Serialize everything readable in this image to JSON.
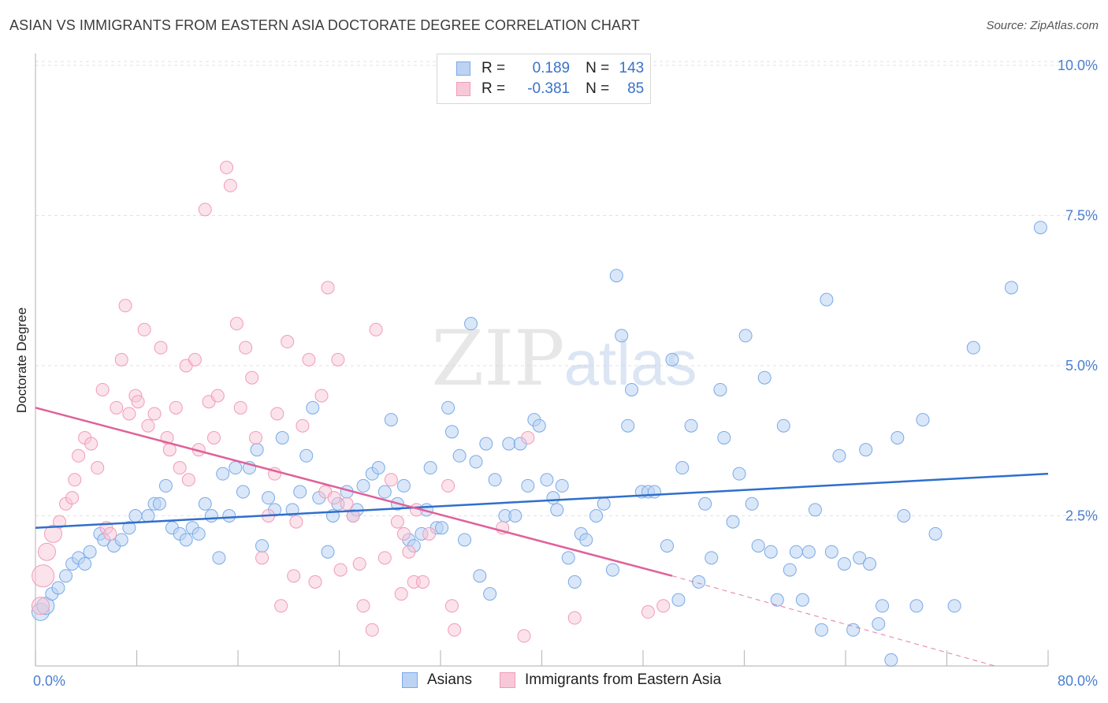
{
  "header": {
    "title": "ASIAN VS IMMIGRANTS FROM EASTERN ASIA DOCTORATE DEGREE CORRELATION CHART",
    "source": "Source: ZipAtlas.com"
  },
  "watermark": {
    "zip": "ZIP",
    "atlas": "atlas"
  },
  "legend": {
    "rows": [
      {
        "r_label": "R =",
        "r_value": "0.189",
        "n_label": "N =",
        "n_value": "143"
      },
      {
        "r_label": "R =",
        "r_value": "-0.381",
        "n_label": "N =",
        "n_value": "85"
      }
    ]
  },
  "bottom_legend": {
    "series1": "Asians",
    "series2": "Immigrants from Eastern Asia"
  },
  "chart_data": {
    "type": "scatter",
    "title": "ASIAN VS IMMIGRANTS FROM EASTERN ASIA DOCTORATE DEGREE CORRELATION CHART",
    "xlabel": "",
    "ylabel": "Doctorate Degree",
    "xlim": [
      0,
      80
    ],
    "ylim": [
      0,
      10.0
    ],
    "x_tick_labels": [
      "0.0%",
      "80.0%"
    ],
    "y_ticks": [
      2.5,
      5.0,
      7.5,
      10.0
    ],
    "y_tick_labels": [
      "2.5%",
      "5.0%",
      "7.5%",
      "10.0%"
    ],
    "grid": true,
    "legend_position": "top-center",
    "colors": {
      "asians": "#7aaae8",
      "asians_line": "#2f6fcc",
      "immigrants": "#f29ab8",
      "immigrants_line": "#e0609a"
    },
    "series": [
      {
        "name": "Asians",
        "R": 0.189,
        "N": 143,
        "trend": {
          "x": [
            0,
            80
          ],
          "y": [
            2.3,
            3.2
          ]
        },
        "points": [
          [
            0.4,
            0.9
          ],
          [
            0.8,
            1.0
          ],
          [
            1.3,
            1.2
          ],
          [
            1.8,
            1.3
          ],
          [
            2.4,
            1.5
          ],
          [
            2.9,
            1.7
          ],
          [
            3.4,
            1.8
          ],
          [
            3.9,
            1.7
          ],
          [
            4.3,
            1.9
          ],
          [
            5.1,
            2.2
          ],
          [
            5.4,
            2.1
          ],
          [
            6.2,
            2.0
          ],
          [
            6.8,
            2.1
          ],
          [
            7.4,
            2.3
          ],
          [
            7.9,
            2.5
          ],
          [
            8.9,
            2.5
          ],
          [
            9.4,
            2.7
          ],
          [
            9.8,
            2.7
          ],
          [
            10.3,
            3.0
          ],
          [
            10.8,
            2.3
          ],
          [
            11.4,
            2.2
          ],
          [
            11.9,
            2.1
          ],
          [
            12.4,
            2.3
          ],
          [
            12.9,
            2.2
          ],
          [
            13.4,
            2.7
          ],
          [
            13.9,
            2.5
          ],
          [
            14.5,
            1.8
          ],
          [
            14.8,
            3.2
          ],
          [
            15.3,
            2.5
          ],
          [
            15.8,
            3.3
          ],
          [
            16.4,
            2.9
          ],
          [
            16.9,
            3.3
          ],
          [
            17.5,
            3.6
          ],
          [
            17.9,
            2.0
          ],
          [
            18.4,
            2.8
          ],
          [
            18.9,
            2.6
          ],
          [
            19.5,
            3.8
          ],
          [
            20.3,
            2.6
          ],
          [
            20.9,
            2.9
          ],
          [
            21.4,
            3.5
          ],
          [
            21.9,
            4.3
          ],
          [
            22.4,
            2.8
          ],
          [
            23.1,
            1.9
          ],
          [
            23.5,
            2.5
          ],
          [
            23.9,
            2.7
          ],
          [
            24.6,
            2.9
          ],
          [
            25.1,
            2.5
          ],
          [
            25.4,
            2.6
          ],
          [
            25.9,
            3.0
          ],
          [
            26.6,
            3.2
          ],
          [
            27.1,
            3.3
          ],
          [
            27.6,
            2.9
          ],
          [
            28.1,
            4.1
          ],
          [
            28.6,
            2.7
          ],
          [
            29.1,
            3.0
          ],
          [
            29.5,
            2.1
          ],
          [
            29.9,
            2.0
          ],
          [
            30.5,
            2.2
          ],
          [
            30.9,
            2.6
          ],
          [
            31.2,
            3.3
          ],
          [
            31.7,
            2.3
          ],
          [
            32.1,
            2.3
          ],
          [
            32.6,
            4.3
          ],
          [
            32.9,
            3.9
          ],
          [
            33.5,
            3.5
          ],
          [
            33.9,
            2.1
          ],
          [
            34.4,
            5.7
          ],
          [
            34.8,
            3.4
          ],
          [
            35.1,
            1.5
          ],
          [
            35.6,
            3.7
          ],
          [
            35.9,
            1.2
          ],
          [
            36.3,
            3.1
          ],
          [
            37.1,
            2.5
          ],
          [
            37.4,
            3.7
          ],
          [
            37.9,
            2.5
          ],
          [
            38.3,
            3.7
          ],
          [
            38.9,
            3.0
          ],
          [
            39.4,
            4.1
          ],
          [
            39.8,
            4.0
          ],
          [
            40.4,
            3.1
          ],
          [
            40.9,
            2.8
          ],
          [
            41.2,
            2.6
          ],
          [
            41.6,
            3.0
          ],
          [
            42.1,
            1.8
          ],
          [
            42.6,
            1.4
          ],
          [
            43.1,
            2.2
          ],
          [
            43.5,
            2.1
          ],
          [
            44.3,
            2.5
          ],
          [
            44.9,
            2.7
          ],
          [
            45.6,
            1.6
          ],
          [
            45.9,
            6.5
          ],
          [
            46.3,
            5.5
          ],
          [
            46.8,
            4.0
          ],
          [
            47.1,
            4.6
          ],
          [
            47.9,
            2.9
          ],
          [
            48.4,
            2.9
          ],
          [
            48.9,
            2.9
          ],
          [
            49.9,
            2.0
          ],
          [
            50.3,
            5.1
          ],
          [
            50.8,
            1.1
          ],
          [
            51.1,
            3.3
          ],
          [
            51.8,
            4.0
          ],
          [
            52.4,
            1.4
          ],
          [
            52.9,
            2.7
          ],
          [
            53.4,
            1.8
          ],
          [
            54.1,
            4.6
          ],
          [
            54.4,
            3.8
          ],
          [
            55.1,
            2.4
          ],
          [
            55.6,
            3.2
          ],
          [
            56.1,
            5.5
          ],
          [
            56.6,
            2.7
          ],
          [
            57.1,
            2.0
          ],
          [
            57.6,
            4.8
          ],
          [
            58.1,
            1.9
          ],
          [
            58.6,
            1.1
          ],
          [
            59.1,
            4.0
          ],
          [
            59.6,
            1.6
          ],
          [
            60.1,
            1.9
          ],
          [
            60.6,
            1.1
          ],
          [
            61.1,
            1.9
          ],
          [
            61.6,
            2.6
          ],
          [
            62.1,
            0.6
          ],
          [
            62.5,
            6.1
          ],
          [
            62.9,
            1.9
          ],
          [
            63.5,
            3.5
          ],
          [
            63.9,
            1.7
          ],
          [
            64.6,
            0.6
          ],
          [
            65.1,
            1.8
          ],
          [
            65.6,
            3.6
          ],
          [
            65.9,
            1.7
          ],
          [
            66.6,
            0.7
          ],
          [
            66.9,
            1.0
          ],
          [
            67.6,
            0.1
          ],
          [
            68.1,
            3.8
          ],
          [
            68.6,
            2.5
          ],
          [
            69.6,
            1.0
          ],
          [
            70.1,
            4.1
          ],
          [
            71.1,
            2.2
          ],
          [
            72.6,
            1.0
          ],
          [
            74.1,
            5.3
          ],
          [
            77.1,
            6.3
          ],
          [
            79.4,
            7.3
          ]
        ]
      },
      {
        "name": "Immigrants from Eastern Asia",
        "R": -0.381,
        "N": 85,
        "trend": {
          "x": [
            0,
            50.3
          ],
          "y": [
            4.3,
            1.5
          ]
        },
        "trend_extension": {
          "x": [
            50.3,
            75.8
          ],
          "y": [
            1.5,
            0.0
          ]
        },
        "points": [
          [
            0.4,
            1.0
          ],
          [
            0.6,
            1.5
          ],
          [
            0.9,
            1.9
          ],
          [
            1.4,
            2.2
          ],
          [
            1.9,
            2.4
          ],
          [
            2.4,
            2.7
          ],
          [
            2.9,
            2.8
          ],
          [
            3.1,
            3.1
          ],
          [
            3.4,
            3.5
          ],
          [
            3.9,
            3.8
          ],
          [
            4.4,
            3.7
          ],
          [
            4.9,
            3.3
          ],
          [
            5.3,
            4.6
          ],
          [
            5.6,
            2.3
          ],
          [
            5.9,
            2.2
          ],
          [
            6.4,
            4.3
          ],
          [
            6.8,
            5.1
          ],
          [
            7.1,
            6.0
          ],
          [
            7.4,
            4.2
          ],
          [
            7.9,
            4.5
          ],
          [
            8.1,
            4.4
          ],
          [
            8.6,
            5.6
          ],
          [
            8.9,
            4.0
          ],
          [
            9.4,
            4.2
          ],
          [
            9.9,
            5.3
          ],
          [
            10.4,
            3.8
          ],
          [
            10.6,
            3.6
          ],
          [
            11.1,
            4.3
          ],
          [
            11.4,
            3.3
          ],
          [
            11.9,
            5.0
          ],
          [
            12.1,
            3.1
          ],
          [
            12.6,
            5.1
          ],
          [
            12.9,
            3.6
          ],
          [
            13.4,
            7.6
          ],
          [
            13.7,
            4.4
          ],
          [
            14.1,
            3.8
          ],
          [
            14.4,
            4.5
          ],
          [
            15.1,
            8.3
          ],
          [
            15.4,
            8.0
          ],
          [
            15.9,
            5.7
          ],
          [
            16.2,
            4.3
          ],
          [
            16.6,
            5.3
          ],
          [
            17.1,
            4.8
          ],
          [
            17.4,
            3.8
          ],
          [
            17.9,
            1.8
          ],
          [
            18.4,
            2.5
          ],
          [
            18.9,
            3.2
          ],
          [
            19.1,
            4.2
          ],
          [
            19.4,
            1.0
          ],
          [
            19.9,
            5.4
          ],
          [
            20.4,
            1.5
          ],
          [
            20.6,
            2.4
          ],
          [
            21.1,
            4.0
          ],
          [
            21.6,
            5.1
          ],
          [
            22.1,
            1.4
          ],
          [
            22.6,
            4.5
          ],
          [
            22.9,
            2.9
          ],
          [
            23.1,
            6.3
          ],
          [
            23.6,
            2.8
          ],
          [
            23.9,
            5.1
          ],
          [
            24.1,
            1.6
          ],
          [
            24.6,
            2.7
          ],
          [
            25.1,
            2.5
          ],
          [
            25.6,
            1.7
          ],
          [
            25.9,
            1.0
          ],
          [
            26.6,
            0.6
          ],
          [
            26.9,
            5.6
          ],
          [
            27.6,
            1.8
          ],
          [
            28.1,
            3.1
          ],
          [
            28.6,
            2.4
          ],
          [
            28.9,
            1.2
          ],
          [
            29.1,
            2.2
          ],
          [
            29.5,
            1.9
          ],
          [
            29.9,
            1.4
          ],
          [
            30.1,
            2.6
          ],
          [
            30.6,
            1.4
          ],
          [
            31.1,
            2.2
          ],
          [
            32.6,
            3.0
          ],
          [
            32.9,
            1.0
          ],
          [
            33.1,
            0.6
          ],
          [
            36.9,
            2.3
          ],
          [
            38.6,
            0.5
          ],
          [
            38.9,
            3.8
          ],
          [
            42.6,
            0.8
          ],
          [
            48.4,
            0.9
          ],
          [
            49.6,
            1.0
          ]
        ]
      }
    ]
  }
}
